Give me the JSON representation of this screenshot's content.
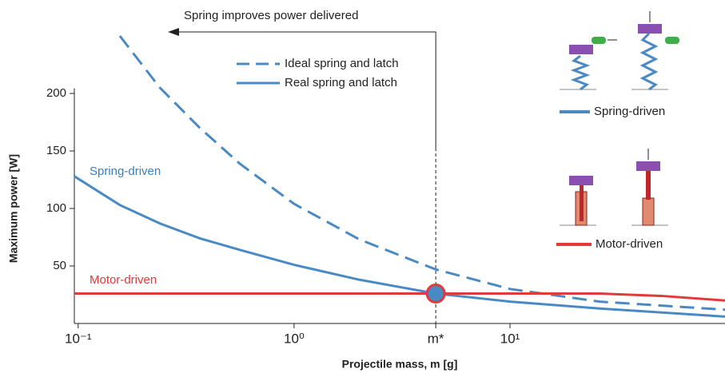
{
  "chart_data": {
    "type": "line",
    "log_x": true,
    "xlabel": "Projectile mass, m [g]",
    "ylabel": "Maximum power  [W]",
    "xlim": [
      0.096,
      99
    ],
    "ylim": [
      0,
      260
    ],
    "xticks": [
      {
        "value": 0.1,
        "label": "10⁻¹"
      },
      {
        "value": 1,
        "label": "10⁰"
      },
      {
        "value": 4.53,
        "label": "m*"
      },
      {
        "value": 10,
        "label": "10¹"
      }
    ],
    "yticks": [
      50,
      100,
      150,
      200
    ],
    "series": [
      {
        "name": "Ideal spring and latch",
        "color": "#4a8ac4",
        "dash": true,
        "x": [
          0.156,
          0.239,
          0.366,
          0.56,
          1.0,
          2.01,
          4.53,
          10,
          26,
          99
        ],
        "values": [
          250,
          205,
          170,
          139,
          104,
          73,
          47,
          30,
          19,
          12
        ]
      },
      {
        "name": "Real spring and latch",
        "color": "#4a8ac4",
        "dash": false,
        "x": [
          0.096,
          0.156,
          0.239,
          0.366,
          0.56,
          1.0,
          2.01,
          4.53,
          10,
          26,
          99
        ],
        "values": [
          128,
          103,
          87,
          74,
          64,
          51,
          38,
          26,
          19,
          13,
          6
        ]
      },
      {
        "name": "Motor-driven",
        "color": "#e03a3a",
        "dash": false,
        "x": [
          0.096,
          4.53,
          26,
          50,
          99
        ],
        "values": [
          26,
          26,
          26,
          24,
          20
        ]
      }
    ],
    "intersection": {
      "x": 4.53,
      "y": 26
    },
    "annotations": {
      "arrow_text": "Spring improves power delivered",
      "spring_label": "Spring-driven",
      "motor_label": "Motor-driven"
    },
    "inset": {
      "spring_label": "Spring-driven",
      "motor_label": "Motor-driven"
    }
  }
}
